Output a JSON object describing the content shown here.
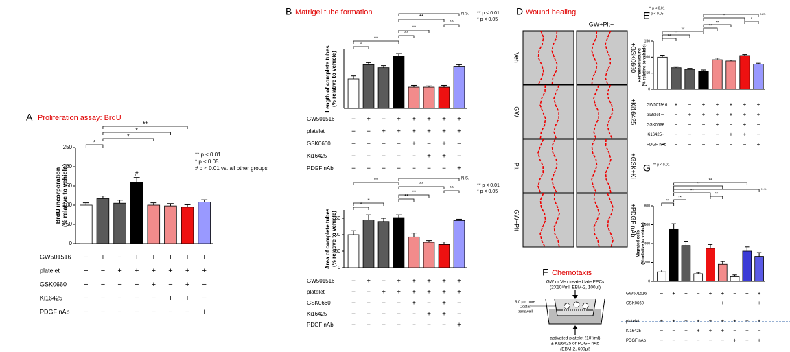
{
  "chart_data": [
    {
      "type": "bar",
      "letter": "A",
      "title": "Proliferation assay: BrdU",
      "ylabel": [
        "BrdU incorporation",
        "(% relative to vehicle)"
      ],
      "values": [
        100,
        117,
        105,
        160,
        100,
        98,
        95,
        108
      ],
      "errors": [
        6,
        7,
        8,
        12,
        6,
        6,
        6,
        6
      ],
      "colors": [
        "#ffffff",
        "#5a5a5a",
        "#5a5a5a",
        "#000000",
        "#f28b8b",
        "#f28b8b",
        "#ee1111",
        "#9999ff"
      ],
      "ylim": [
        0,
        250
      ],
      "yticks": [
        0,
        50,
        100,
        150,
        200,
        250
      ],
      "bar_annotations": [
        {
          "index": 3,
          "label": "#"
        }
      ],
      "brackets": [
        {
          "from": 0,
          "to": 1,
          "label": "*"
        },
        {
          "from": 1,
          "to": 4,
          "label": "*"
        },
        {
          "from": 1,
          "to": 5,
          "label": "*"
        },
        {
          "from": 1,
          "to": 6,
          "label": "**"
        }
      ],
      "notes": [
        "** p < 0.01",
        "* p < 0.05",
        "# p < 0.01 vs. all other groups"
      ],
      "conditions": [
        {
          "label": "GW501516",
          "signs": [
            "−",
            "+",
            "−",
            "+",
            "+",
            "+",
            "+",
            "+"
          ]
        },
        {
          "label": "platelet",
          "signs": [
            "−",
            "−",
            "+",
            "+",
            "+",
            "+",
            "+",
            "+"
          ]
        },
        {
          "label": "GSK0660",
          "signs": [
            "−",
            "−",
            "−",
            "−",
            "+",
            "−",
            "+",
            "−"
          ]
        },
        {
          "label": "Ki16425",
          "signs": [
            "−",
            "−",
            "−",
            "−",
            "−",
            "+",
            "+",
            "−"
          ]
        },
        {
          "label": "PDGF nAb",
          "signs": [
            "−",
            "−",
            "−",
            "−",
            "−",
            "−",
            "−",
            "+"
          ]
        }
      ]
    },
    {
      "type": "bar",
      "letter": "B",
      "title": "Matrigel tube formation",
      "ylabel": [
        "Length of complete tubes",
        "(% relative to vehicle)"
      ],
      "values": [
        100,
        148,
        138,
        178,
        72,
        72,
        72,
        143
      ],
      "errors": [
        10,
        7,
        7,
        8,
        6,
        4,
        6,
        5
      ],
      "colors": [
        "#ffffff",
        "#5a5a5a",
        "#5a5a5a",
        "#000000",
        "#f28b8b",
        "#f28b8b",
        "#ee1111",
        "#9999ff"
      ],
      "ylim": [
        0,
        200
      ],
      "brackets": [
        {
          "from": 0,
          "to": 1,
          "label": "*"
        },
        {
          "from": 0,
          "to": 3,
          "label": "**"
        },
        {
          "from": 3,
          "to": 4,
          "label": "**"
        },
        {
          "from": 3,
          "to": 5,
          "label": "**"
        },
        {
          "from": 6,
          "to": 7,
          "label": "**"
        },
        {
          "from": 3,
          "to": 6,
          "label": "**"
        },
        {
          "from": 3,
          "to": 7,
          "label": "N.S."
        }
      ],
      "notes": [
        "** p < 0.01",
        "* p < 0.05"
      ],
      "conditions": [
        {
          "label": "GW501516",
          "signs": [
            "−",
            "+",
            "−",
            "+",
            "+",
            "+",
            "+",
            "+"
          ]
        },
        {
          "label": "platelet",
          "signs": [
            "−",
            "−",
            "+",
            "+",
            "+",
            "+",
            "+",
            "+"
          ]
        },
        {
          "label": "GSK0660",
          "signs": [
            "−",
            "−",
            "−",
            "−",
            "+",
            "−",
            "+",
            "−"
          ]
        },
        {
          "label": "Ki16425",
          "signs": [
            "−",
            "−",
            "−",
            "−",
            "−",
            "+",
            "+",
            "−"
          ]
        },
        {
          "label": "PDGF nAb",
          "signs": [
            "−",
            "−",
            "−",
            "−",
            "−",
            "−",
            "−",
            "+"
          ]
        }
      ]
    },
    {
      "type": "bar",
      "ylabel": [
        "Area of complete tubes",
        "(% relative to vehicle)"
      ],
      "values": [
        100,
        145,
        140,
        152,
        93,
        77,
        70,
        143
      ],
      "errors": [
        12,
        15,
        10,
        8,
        12,
        5,
        8,
        4
      ],
      "colors": [
        "#ffffff",
        "#5a5a5a",
        "#5a5a5a",
        "#000000",
        "#f28b8b",
        "#f28b8b",
        "#ee1111",
        "#9999ff"
      ],
      "ylim": [
        0,
        175
      ],
      "yticks": [
        0,
        50,
        100,
        150
      ],
      "brackets": [
        {
          "from": 0,
          "to": 1,
          "label": "*"
        },
        {
          "from": 0,
          "to": 2,
          "label": "*"
        },
        {
          "from": 3,
          "to": 4,
          "label": "**"
        },
        {
          "from": 3,
          "to": 5,
          "label": "**"
        },
        {
          "from": 6,
          "to": 7,
          "label": "**"
        },
        {
          "from": 3,
          "to": 6,
          "label": "**"
        },
        {
          "from": 0,
          "to": 3,
          "label": "**"
        },
        {
          "from": 3,
          "to": 7,
          "label": "N.S."
        }
      ],
      "notes": [
        "** p < 0.01",
        "* p < 0.05"
      ],
      "conditions": [
        {
          "label": "GW501516",
          "signs": [
            "−",
            "+",
            "−",
            "+",
            "+",
            "+",
            "+",
            "+"
          ]
        },
        {
          "label": "platelet",
          "signs": [
            "−",
            "−",
            "+",
            "+",
            "+",
            "+",
            "+",
            "+"
          ]
        },
        {
          "label": "GSK0660",
          "signs": [
            "−",
            "−",
            "−",
            "−",
            "+",
            "−",
            "+",
            "−"
          ]
        },
        {
          "label": "Ki16425",
          "signs": [
            "−",
            "−",
            "−",
            "−",
            "−",
            "+",
            "+",
            "−"
          ]
        },
        {
          "label": "PDGF nAb",
          "signs": [
            "−",
            "−",
            "−",
            "−",
            "−",
            "−",
            "−",
            "+"
          ]
        }
      ]
    },
    {
      "type": "bar",
      "letter": "E",
      "ylabel": [
        "Remained wound",
        "(% relative to vehicle)"
      ],
      "values": [
        100,
        67,
        62,
        57,
        92,
        88,
        105,
        78
      ],
      "errors": [
        6,
        3,
        3,
        3,
        5,
        3,
        3,
        3
      ],
      "colors": [
        "#ffffff",
        "#5a5a5a",
        "#5a5a5a",
        "#000000",
        "#f28b8b",
        "#f28b8b",
        "#ee1111",
        "#9999ff"
      ],
      "ylim": [
        0,
        150
      ],
      "yticks": [
        0,
        50,
        100,
        150
      ],
      "brackets": [
        {
          "from": 0,
          "to": 1,
          "label": "**"
        },
        {
          "from": 0,
          "to": 2,
          "label": "**"
        },
        {
          "from": 0,
          "to": 3,
          "label": "**"
        },
        {
          "from": 3,
          "to": 4,
          "label": "**"
        },
        {
          "from": 3,
          "to": 5,
          "label": "**"
        },
        {
          "from": 6,
          "to": 7,
          "label": "*"
        },
        {
          "from": 3,
          "to": 6,
          "label": "**"
        },
        {
          "from": 3,
          "to": 7,
          "label": "N.S."
        }
      ],
      "notes": [
        "** p < 0.01",
        "* p < 0.05"
      ],
      "conditions": [
        {
          "label": "GW501516",
          "signs": [
            "−",
            "+",
            "−",
            "+",
            "+",
            "+",
            "+",
            "+"
          ]
        },
        {
          "label": "platelet",
          "signs": [
            "−",
            "−",
            "+",
            "+",
            "+",
            "+",
            "+",
            "+"
          ]
        },
        {
          "label": "GSK0660",
          "signs": [
            "−",
            "−",
            "−",
            "−",
            "+",
            "−",
            "+",
            "−"
          ]
        },
        {
          "label": "Ki16425",
          "signs": [
            "−",
            "−",
            "−",
            "−",
            "−",
            "+",
            "+",
            "−"
          ]
        },
        {
          "label": "PDGF nAb",
          "signs": [
            "−",
            "−",
            "−",
            "−",
            "−",
            "−",
            "−",
            "+"
          ]
        }
      ]
    },
    {
      "type": "bar",
      "letter": "G",
      "ylabel": [
        "Migrated cells",
        "(% relative to vehicle)"
      ],
      "values": [
        100,
        550,
        380,
        80,
        350,
        180,
        55,
        320,
        265
      ],
      "errors": [
        20,
        60,
        45,
        15,
        40,
        30,
        12,
        45,
        40
      ],
      "colors": [
        "#ffffff",
        "#000000",
        "#5a5a5a",
        "#ffffff",
        "#ee1111",
        "#f28b8b",
        "#ffffff",
        "#3b3bd6",
        "#5a5ae6"
      ],
      "ylim": [
        0,
        800
      ],
      "yticks": [
        0,
        200,
        400,
        600,
        800
      ],
      "brackets": [
        {
          "from": 0,
          "to": 1,
          "label": "**"
        },
        {
          "from": 1,
          "to": 2,
          "label": "**"
        },
        {
          "from": 4,
          "to": 5,
          "label": "**"
        },
        {
          "from": 1,
          "to": 4,
          "label": "**"
        },
        {
          "from": 1,
          "to": 8,
          "label": "N.S."
        },
        {
          "from": 1,
          "to": 5,
          "label": "**"
        },
        {
          "from": 1,
          "to": 7,
          "label": "**"
        }
      ],
      "notes": [
        "** p < 0.01"
      ],
      "conditions": [
        {
          "label": "GW501516",
          "signs": [
            "−",
            "+",
            "+",
            "−",
            "+",
            "+",
            "−",
            "+",
            "+"
          ]
        },
        {
          "label": "GSK0660",
          "signs": [
            "−",
            "−",
            "+",
            "−",
            "−",
            "+",
            "−",
            "−",
            "+"
          ]
        },
        {
          "label": "platelet",
          "signs": [
            "+",
            "+",
            "+",
            "+",
            "+",
            "+",
            "+",
            "+",
            "+"
          ]
        },
        {
          "label": "Ki16425",
          "signs": [
            "−",
            "−",
            "−",
            "+",
            "+",
            "+",
            "−",
            "−",
            "−"
          ]
        },
        {
          "label": "PDGF nAb",
          "signs": [
            "−",
            "−",
            "−",
            "−",
            "−",
            "−",
            "+",
            "+",
            "+"
          ]
        }
      ]
    }
  ],
  "wound_healing": {
    "letter": "D",
    "title": "Wound healing",
    "column_header": "GW+Plt+",
    "left_labels": [
      "Veh",
      "GW",
      "Plt",
      "GW+Plt"
    ],
    "right_labels": [
      "+GSK0660",
      "+Ki16425",
      "+GSK+Ki",
      "+PDGF nAb"
    ]
  },
  "chemotaxis": {
    "letter": "F",
    "title": "Chemotaxis",
    "top_text": [
      "GW or Veh treated late EPCs",
      "(2X10⁵/ml, EBM-2, 100μl)"
    ],
    "side_text": [
      "5.0 μm pore",
      "Costar",
      "transwell"
    ],
    "bottom_text": [
      "activated platelet (10⁷/ml)",
      "± Ki16425 or PDGF nAb",
      "(EBM-2, 600μl)"
    ]
  }
}
